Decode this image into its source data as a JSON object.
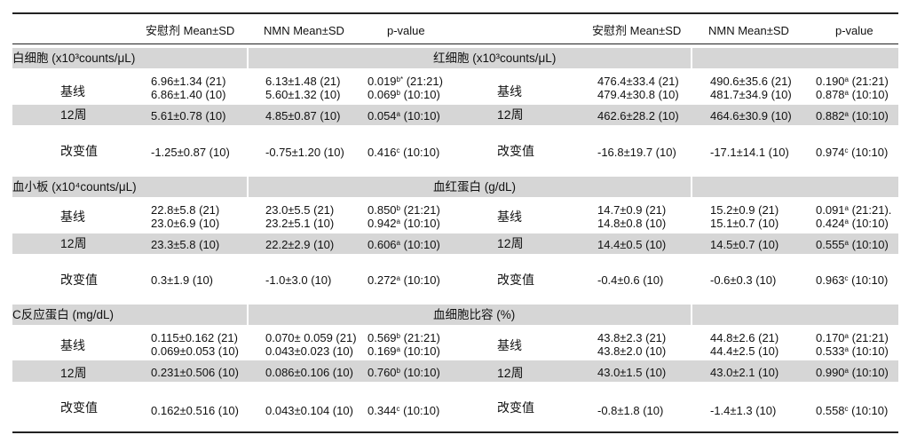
{
  "headers": {
    "left": [
      "安慰剂 Mean±SD",
      "NMN Mean±SD",
      "p-value"
    ],
    "right": [
      "安慰剂 Mean±SD",
      "NMN Mean±SD",
      "p-value"
    ]
  },
  "sections": [
    {
      "left_title": "白细胞 (x10³counts/μL)",
      "right_title": "红细胞 (x10³counts/μL)",
      "left_rows": [
        {
          "label": "基线",
          "placebo": [
            "6.96±1.34 (21)",
            "6.86±1.40 (10)"
          ],
          "nmn": [
            "6.13±1.48 (21)",
            "5.60±1.32 (10)"
          ],
          "p": [
            [
              "0.019",
              "b*",
              " (21:21)"
            ],
            [
              "0.069",
              "b",
              " (10:10)"
            ]
          ]
        },
        {
          "label": "12周",
          "placebo": [
            "5.61±0.78 (10)"
          ],
          "nmn": [
            "4.85±0.87 (10)"
          ],
          "p": [
            [
              "0.054",
              "a",
              " (10:10)"
            ]
          ]
        },
        {
          "label": "改变值",
          "placebo": [
            "-1.25±0.87 (10)"
          ],
          "nmn": [
            "-0.75±1.20 (10)"
          ],
          "p": [
            [
              "0.416",
              "c",
              " (10:10)"
            ]
          ]
        }
      ],
      "right_rows": [
        {
          "label": "基线",
          "placebo": [
            "476.4±33.4 (21)",
            "479.4±30.8 (10)"
          ],
          "nmn": [
            "490.6±35.6 (21)",
            "481.7±34.9 (10)"
          ],
          "p": [
            [
              "0.190",
              "a",
              " (21:21)"
            ],
            [
              "0.878",
              "a",
              " (10:10)"
            ]
          ]
        },
        {
          "label": "12周",
          "placebo": [
            "462.6±28.2 (10)"
          ],
          "nmn": [
            "464.6±30.9 (10)"
          ],
          "p": [
            [
              "0.882",
              "a",
              " (10:10)"
            ]
          ]
        },
        {
          "label": "改变值",
          "placebo": [
            "-16.8±19.7 (10)"
          ],
          "nmn": [
            "-17.1±14.1 (10)"
          ],
          "p": [
            [
              "0.974",
              "c",
              " (10:10)"
            ]
          ]
        }
      ]
    },
    {
      "left_title": "血小板 (x10⁴counts/μL)",
      "right_title": "血红蛋白 (g/dL)",
      "left_rows": [
        {
          "label": "基线",
          "placebo": [
            "22.8±5.8 (21)",
            "23.0±6.9 (10)"
          ],
          "nmn": [
            "23.0±5.5 (21)",
            "23.2±5.1 (10)"
          ],
          "p": [
            [
              "0.850",
              "b",
              " (21:21)"
            ],
            [
              "0.942",
              "a",
              " (10:10)"
            ]
          ]
        },
        {
          "label": "12周",
          "placebo": [
            "23.3±5.8 (10)"
          ],
          "nmn": [
            "22.2±2.9 (10)"
          ],
          "p": [
            [
              "0.606",
              "a",
              " (10:10)"
            ]
          ]
        },
        {
          "label": "改变值",
          "placebo": [
            "0.3±1.9 (10)"
          ],
          "nmn": [
            "-1.0±3.0 (10)"
          ],
          "p": [
            [
              "0.272",
              "a",
              " (10:10)"
            ]
          ]
        }
      ],
      "right_rows": [
        {
          "label": "基线",
          "placebo": [
            "14.7±0.9 (21)",
            "14.8±0.8 (10)"
          ],
          "nmn": [
            "15.2±0.9 (21)",
            "15.1±0.7 (10)"
          ],
          "p": [
            [
              "0.091",
              "a",
              " (21:21)."
            ],
            [
              "0.424",
              "a",
              " (10:10)"
            ]
          ]
        },
        {
          "label": "12周",
          "placebo": [
            "14.4±0.5 (10)"
          ],
          "nmn": [
            "14.5±0.7 (10)"
          ],
          "p": [
            [
              "0.555",
              "a",
              " (10:10)"
            ]
          ]
        },
        {
          "label": "改变值",
          "placebo": [
            "-0.4±0.6 (10)"
          ],
          "nmn": [
            "-0.6±0.3 (10)"
          ],
          "p": [
            [
              "0.963",
              "c",
              " (10:10)"
            ]
          ]
        }
      ]
    },
    {
      "left_title": "C反应蛋白 (mg/dL)",
      "right_title": "血细胞比容 (%)",
      "left_rows": [
        {
          "label": "基线",
          "placebo": [
            "0.115±0.162 (21)",
            "0.069±0.053 (10)"
          ],
          "nmn": [
            "0.070± 0.059 (21)",
            "0.043±0.023 (10)"
          ],
          "p": [
            [
              "0.569",
              "b",
              " (21:21)"
            ],
            [
              "0.169",
              "a",
              " (10:10)"
            ]
          ]
        },
        {
          "label": "12周",
          "placebo": [
            "0.231±0.506 (10)"
          ],
          "nmn": [
            "0.086±0.106 (10)"
          ],
          "p": [
            [
              "0.760",
              "b",
              " (10:10)"
            ]
          ]
        },
        {
          "label": "改变值",
          "placebo": [
            "0.162±0.516 (10)"
          ],
          "nmn": [
            "0.043±0.104 (10)"
          ],
          "p": [
            [
              "0.344",
              "c",
              " (10:10)"
            ]
          ]
        }
      ],
      "right_rows": [
        {
          "label": "基线",
          "placebo": [
            "43.8±2.3 (21)",
            "43.8±2.0 (10)"
          ],
          "nmn": [
            "44.8±2.6 (21)",
            "44.4±2.5 (10)"
          ],
          "p": [
            [
              "0.170",
              "a",
              " (21:21)"
            ],
            [
              "0.533",
              "a",
              " (10:10)"
            ]
          ]
        },
        {
          "label": "12周",
          "placebo": [
            "43.0±1.5 (10)"
          ],
          "nmn": [
            "43.0±2.1 (10)"
          ],
          "p": [
            [
              "0.990",
              "a",
              " (10:10)"
            ]
          ]
        },
        {
          "label": "改变值",
          "placebo": [
            "-0.8±1.8 (10)"
          ],
          "nmn": [
            "-1.4±1.3 (10)"
          ],
          "p": [
            [
              "0.558",
              "c",
              " (10:10)"
            ]
          ]
        }
      ]
    }
  ]
}
